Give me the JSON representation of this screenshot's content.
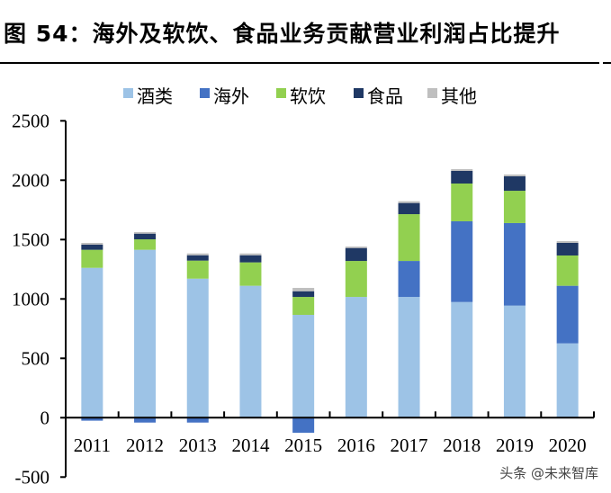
{
  "title": "图 54：海外及软饮、食品业务贡献营业利润占比提升",
  "watermark": "头条 @未来智库",
  "chart_data": {
    "type": "bar",
    "stacked": true,
    "title": "图 54：海外及软饮、食品业务贡献营业利润占比提升",
    "categories": [
      "2011",
      "2012",
      "2013",
      "2014",
      "2015",
      "2016",
      "2017",
      "2018",
      "2019",
      "2020"
    ],
    "series": [
      {
        "name": "酒类",
        "color": "#9DC3E6",
        "values": [
          1262,
          1414,
          1171,
          1111,
          866,
          1017,
          1017,
          974,
          944,
          626
        ]
      },
      {
        "name": "海外",
        "color": "#4472C4",
        "values": [
          -25,
          -41,
          -41,
          0,
          -127,
          0,
          303,
          680,
          695,
          485
        ]
      },
      {
        "name": "软饮",
        "color": "#92D050",
        "values": [
          152,
          88,
          152,
          197,
          151,
          303,
          394,
          318,
          272,
          255
        ]
      },
      {
        "name": "食品",
        "color": "#1F3864",
        "values": [
          43,
          48,
          45,
          60,
          48,
          109,
          94,
          106,
          122,
          106
        ]
      },
      {
        "name": "其他",
        "color": "#BFBFBF",
        "values": [
          15,
          13,
          15,
          15,
          28,
          12,
          15,
          15,
          15,
          15
        ]
      }
    ],
    "ylim": [
      -500,
      2500
    ],
    "yticks": [
      "2500",
      "2000",
      "1500",
      "1000",
      "500",
      "0",
      "-500"
    ],
    "ytick_values": [
      2500,
      2000,
      1500,
      1000,
      500,
      0,
      -500
    ],
    "legend": "top",
    "grid": false,
    "xlabel": "",
    "ylabel": ""
  }
}
